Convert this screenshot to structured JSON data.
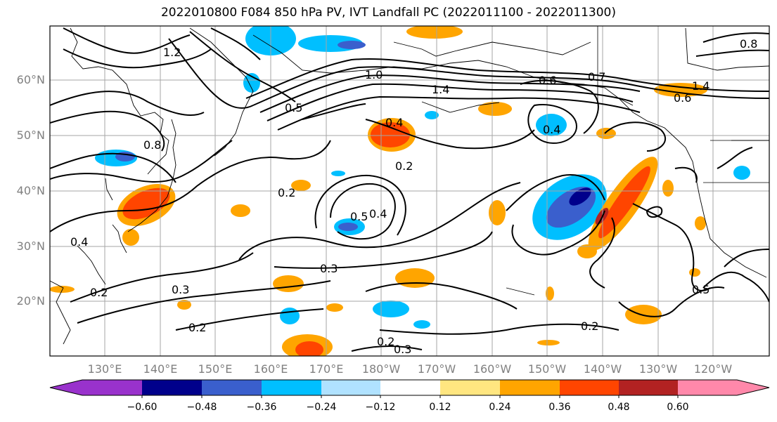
{
  "title": "2022010800 F084 850 hPa PV, IVT Landfall PC (2022011100 - 2022011300)",
  "lat_labels": [
    "60°N",
    "50°N",
    "40°N",
    "30°N",
    "20°N"
  ],
  "lon_labels": [
    "130°E",
    "140°E",
    "150°E",
    "160°E",
    "170°E",
    "180°W",
    "170°W",
    "160°W",
    "150°W",
    "140°W",
    "130°W",
    "120°W"
  ],
  "contour_labels": [
    "1.4",
    "1.0",
    "0.8",
    "0.7",
    "0.6",
    "0.5",
    "0.4",
    "0.2",
    "0.3",
    "0.4",
    "0.5",
    "0.2",
    "0.3",
    "0.2",
    "0.2",
    "0.3",
    "0.2",
    "0.5",
    "0.2",
    "0.4",
    "0.4",
    "0.6",
    "0.8",
    "1.2",
    "1.4"
  ],
  "colorbar": {
    "ticks": [
      "−0.60",
      "−0.48",
      "−0.36",
      "−0.24",
      "−0.12",
      "0.12",
      "0.24",
      "0.36",
      "0.48",
      "0.60"
    ],
    "colors": [
      "#9932cc",
      "#00008b",
      "#3a5fcd",
      "#00bfff",
      "#b0e2ff",
      "#ffffff",
      "#ffe680",
      "#ffa500",
      "#ff4500",
      "#b22222",
      "#ff88aa"
    ]
  },
  "anomaly_colors": {
    "pos1": "#ffe680",
    "pos2": "#ffa500",
    "pos3": "#ff4500",
    "pos4": "#b22222",
    "neg1": "#b0e2ff",
    "neg2": "#00bfff",
    "neg3": "#3a5fcd",
    "neg4": "#00008b"
  }
}
